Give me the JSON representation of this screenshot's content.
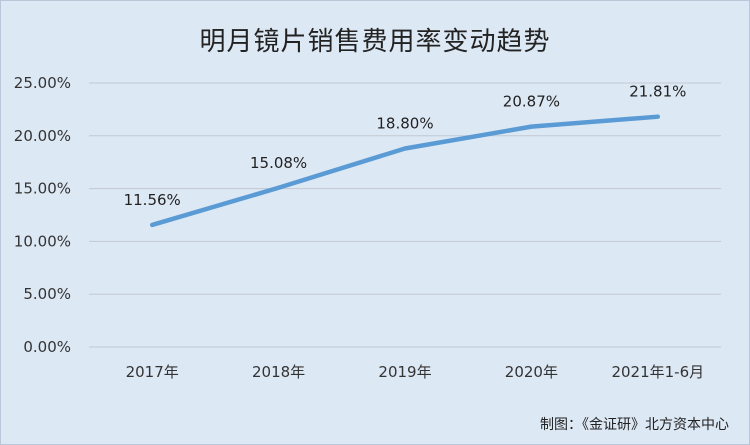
{
  "chart_data": {
    "type": "line",
    "title": "明月镜片销售费用率变动趋势",
    "categories": [
      "2017年",
      "2018年",
      "2019年",
      "2020年",
      "2021年1-6月"
    ],
    "series": [
      {
        "values": [
          11.56,
          15.08,
          18.8,
          20.87,
          21.81
        ],
        "labels": [
          "11.56%",
          "15.08%",
          "18.80%",
          "20.87%",
          "21.81%"
        ]
      }
    ],
    "y_ticks": [
      "0.00%",
      "5.00%",
      "10.00%",
      "15.00%",
      "20.00%",
      "25.00%"
    ],
    "ylim": [
      0,
      25
    ],
    "grid": true,
    "line_color": "#5b9bd5"
  },
  "source_note": "制图：《金证研》北方资本中心"
}
